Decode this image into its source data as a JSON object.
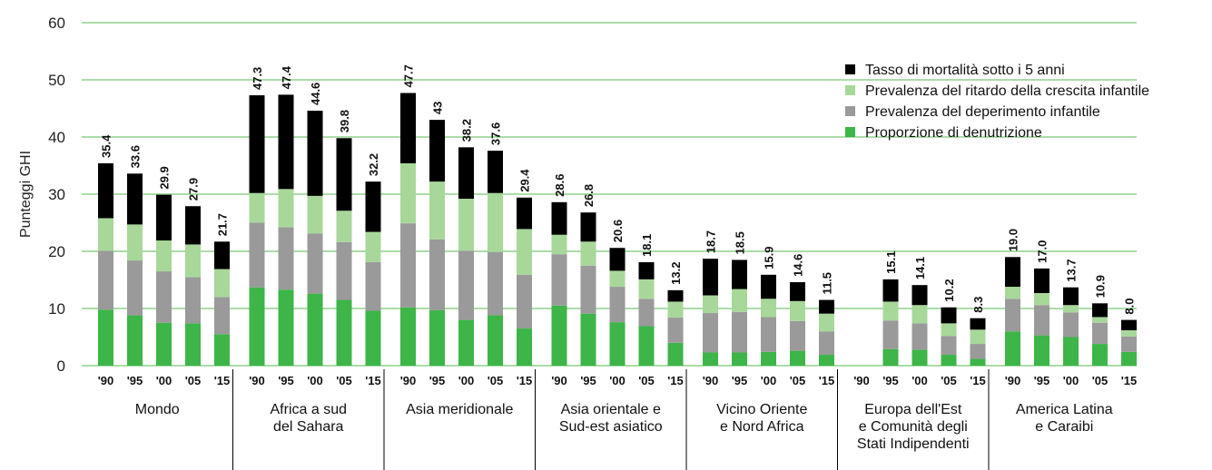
{
  "chart_data": {
    "type": "bar",
    "stacked": true,
    "ylabel": "Punteggi GHI",
    "ylim": [
      0,
      60
    ],
    "yticks": [
      0,
      10,
      20,
      30,
      40,
      50,
      60
    ],
    "grid": true,
    "legend_position": "top-right",
    "years": [
      "'90",
      "'95",
      "'00",
      "'05",
      "'15"
    ],
    "series": [
      {
        "name": "Proporzione di denutrizione",
        "color": "#3db548"
      },
      {
        "name": "Prevalenza del deperimento infantile",
        "color": "#9a9a9a"
      },
      {
        "name": "Prevalenza del ritardo della crescita infantile",
        "color": "#a8d79a"
      },
      {
        "name": "Tasso di mortalità sotto i 5 anni",
        "color": "#000000"
      }
    ],
    "legend_order": [
      3,
      2,
      1,
      0
    ],
    "groups": [
      {
        "label_lines": [
          "Mondo"
        ],
        "totals": [
          "35.4",
          "33.6",
          "29.9",
          "27.9",
          "21.7"
        ],
        "components": [
          [
            9.8,
            10.3,
            5.7,
            9.6
          ],
          [
            8.8,
            9.6,
            6.3,
            8.9
          ],
          [
            7.5,
            9.0,
            5.4,
            8.0
          ],
          [
            7.4,
            8.1,
            5.7,
            6.7
          ],
          [
            5.5,
            6.5,
            4.9,
            4.8
          ]
        ]
      },
      {
        "label_lines": [
          "Africa a sud",
          "del Sahara"
        ],
        "totals": [
          "47.3",
          "47.4",
          "44.6",
          "39.8",
          "32.2"
        ],
        "components": [
          [
            13.7,
            11.3,
            5.2,
            17.1
          ],
          [
            13.3,
            10.9,
            6.7,
            16.5
          ],
          [
            12.6,
            10.5,
            6.6,
            14.9
          ],
          [
            11.5,
            10.1,
            5.5,
            12.7
          ],
          [
            9.6,
            8.5,
            5.3,
            8.8
          ]
        ]
      },
      {
        "label_lines": [
          "Asia meridionale"
        ],
        "totals": [
          "47.7",
          "43",
          "38.2",
          "37.6",
          "29.4"
        ],
        "components": [
          [
            10.2,
            14.7,
            10.5,
            12.3
          ],
          [
            9.7,
            12.4,
            10.1,
            10.8
          ],
          [
            8.0,
            12.1,
            9.1,
            9.0
          ],
          [
            8.8,
            11.1,
            10.3,
            7.4
          ],
          [
            6.5,
            9.4,
            8.0,
            5.5
          ]
        ]
      },
      {
        "label_lines": [
          "Asia orientale e",
          "Sud-est asiatico"
        ],
        "totals": [
          "28.6",
          "26.8",
          "20.6",
          "18.1",
          "13.2"
        ],
        "components": [
          [
            10.5,
            9.0,
            3.4,
            5.7
          ],
          [
            9.1,
            8.4,
            4.2,
            5.1
          ],
          [
            7.6,
            6.2,
            2.8,
            4.0
          ],
          [
            6.9,
            4.8,
            3.4,
            3.0
          ],
          [
            4.0,
            4.4,
            2.8,
            2.0
          ]
        ]
      },
      {
        "label_lines": [
          "Vicino Oriente",
          "e Nord Africa"
        ],
        "totals": [
          "18.7",
          "18.5",
          "15.9",
          "14.6",
          "11.5"
        ],
        "components": [
          [
            2.3,
            6.9,
            3.1,
            6.4
          ],
          [
            2.3,
            7.1,
            4.0,
            5.1
          ],
          [
            2.4,
            6.1,
            3.2,
            4.2
          ],
          [
            2.6,
            5.2,
            3.5,
            3.3
          ],
          [
            1.9,
            4.1,
            3.1,
            2.4
          ]
        ]
      },
      {
        "label_lines": [
          "Europa dell'Est",
          "e Comunità degli",
          "Stati Indipendenti"
        ],
        "totals": [
          "",
          "15.1",
          "14.1",
          "10.2",
          "8.3"
        ],
        "components": [
          null,
          [
            2.9,
            5.0,
            3.3,
            3.9
          ],
          [
            2.8,
            4.6,
            3.2,
            3.5
          ],
          [
            1.9,
            3.3,
            2.2,
            2.8
          ],
          [
            1.2,
            2.6,
            2.5,
            2.0
          ]
        ]
      },
      {
        "label_lines": [
          "America Latina",
          "e Caraibi"
        ],
        "totals": [
          "19.0",
          "17.0",
          "13.7",
          "10.9",
          "8.0"
        ],
        "components": [
          [
            6.0,
            5.7,
            2.1,
            5.2
          ],
          [
            5.3,
            5.3,
            2.1,
            4.3
          ],
          [
            5.0,
            4.3,
            1.3,
            3.1
          ],
          [
            3.8,
            3.7,
            1.0,
            2.4
          ],
          [
            2.4,
            2.7,
            1.1,
            1.8
          ]
        ]
      }
    ]
  }
}
